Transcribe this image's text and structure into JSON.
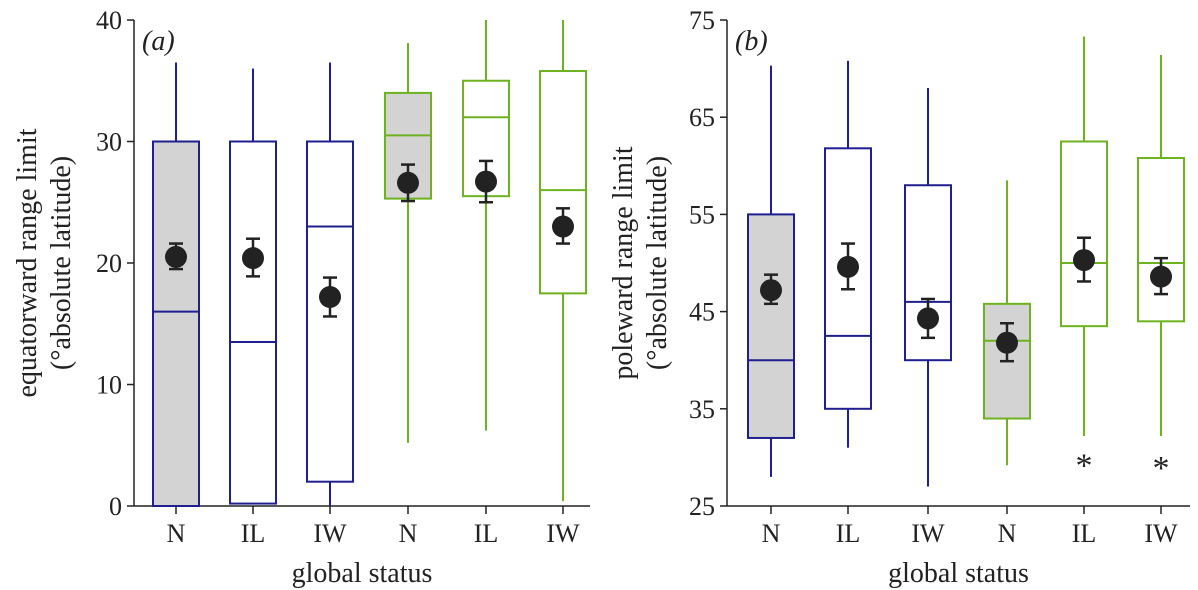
{
  "colors": {
    "native": "#1f1f8f",
    "introduced": "#6db31f",
    "filled_box": "#d3d3d3",
    "mean_marker": "#222222"
  },
  "chart_data": [
    {
      "type": "box",
      "panel_label": "(a)",
      "xlabel": "global status",
      "ylabel_line1": "equatorward range limit",
      "ylabel_line2": "(°absolute latitude)",
      "ylim": [
        0,
        40
      ],
      "yticks": [
        0,
        10,
        20,
        30,
        40
      ],
      "categories": [
        "N",
        "IL",
        "IW",
        "N",
        "IL",
        "IW"
      ],
      "boxes": [
        {
          "category": "N",
          "group": "native",
          "filled": true,
          "whisker_low": 0,
          "q1": 0,
          "median": 16,
          "q3": 30,
          "whisker_high": 36.5,
          "mean": 20.5,
          "ci": [
            19.5,
            21.6
          ]
        },
        {
          "category": "IL",
          "group": "native",
          "filled": false,
          "whisker_low": 0.2,
          "q1": 0.2,
          "median": 13.5,
          "q3": 30,
          "whisker_high": 36,
          "mean": 20.4,
          "ci": [
            18.9,
            22
          ]
        },
        {
          "category": "IW",
          "group": "native",
          "filled": false,
          "whisker_low": 0,
          "q1": 2,
          "median": 23,
          "q3": 30,
          "whisker_high": 36.5,
          "mean": 17.2,
          "ci": [
            15.6,
            18.8
          ]
        },
        {
          "category": "N",
          "group": "introduced",
          "filled": true,
          "whisker_low": 5.2,
          "q1": 25.3,
          "median": 30.5,
          "q3": 34,
          "whisker_high": 38.1,
          "mean": 26.6,
          "ci": [
            25.1,
            28.1
          ]
        },
        {
          "category": "IL",
          "group": "introduced",
          "filled": false,
          "whisker_low": 6.2,
          "q1": 25.5,
          "median": 32,
          "q3": 35,
          "whisker_high": 40,
          "mean": 26.7,
          "ci": [
            25,
            28.4
          ]
        },
        {
          "category": "IW",
          "group": "introduced",
          "filled": false,
          "whisker_low": 0.4,
          "q1": 17.5,
          "median": 26,
          "q3": 35.8,
          "whisker_high": 40,
          "mean": 23,
          "ci": [
            21.6,
            24.5
          ]
        }
      ],
      "annotations": []
    },
    {
      "type": "box",
      "panel_label": "(b)",
      "xlabel": "global status",
      "ylabel_line1": "poleward range limit",
      "ylabel_line2": "(°absolute latitude)",
      "ylim": [
        25,
        75
      ],
      "yticks": [
        25,
        35,
        45,
        55,
        65,
        75
      ],
      "categories": [
        "N",
        "IL",
        "IW",
        "N",
        "IL",
        "IW"
      ],
      "boxes": [
        {
          "category": "N",
          "group": "native",
          "filled": true,
          "whisker_low": 28,
          "q1": 32,
          "median": 40,
          "q3": 55,
          "whisker_high": 70.3,
          "mean": 47.2,
          "ci": [
            45.8,
            48.8
          ]
        },
        {
          "category": "IL",
          "group": "native",
          "filled": false,
          "whisker_low": 31,
          "q1": 35,
          "median": 42.5,
          "q3": 61.8,
          "whisker_high": 70.8,
          "mean": 49.6,
          "ci": [
            47.3,
            52
          ]
        },
        {
          "category": "IW",
          "group": "native",
          "filled": false,
          "whisker_low": 27,
          "q1": 40,
          "median": 46,
          "q3": 58,
          "whisker_high": 68,
          "mean": 44.3,
          "ci": [
            42.3,
            46.3
          ]
        },
        {
          "category": "N",
          "group": "introduced",
          "filled": true,
          "whisker_low": 29.2,
          "q1": 34,
          "median": 42,
          "q3": 45.8,
          "whisker_high": 58.5,
          "mean": 41.8,
          "ci": [
            39.9,
            43.8
          ]
        },
        {
          "category": "IL",
          "group": "introduced",
          "filled": false,
          "whisker_low": 32.2,
          "q1": 43.5,
          "median": 50,
          "q3": 62.5,
          "whisker_high": 73.3,
          "mean": 50.3,
          "ci": [
            48.1,
            52.6
          ]
        },
        {
          "category": "IW",
          "group": "introduced",
          "filled": false,
          "whisker_low": 32.2,
          "q1": 44,
          "median": 50,
          "q3": 60.8,
          "whisker_high": 71.4,
          "mean": 48.6,
          "ci": [
            46.8,
            50.5
          ]
        }
      ],
      "annotations": [
        {
          "category_index": 4,
          "text": "*",
          "y": 29.5
        },
        {
          "category_index": 5,
          "text": "*",
          "y": 29.2
        }
      ]
    }
  ]
}
